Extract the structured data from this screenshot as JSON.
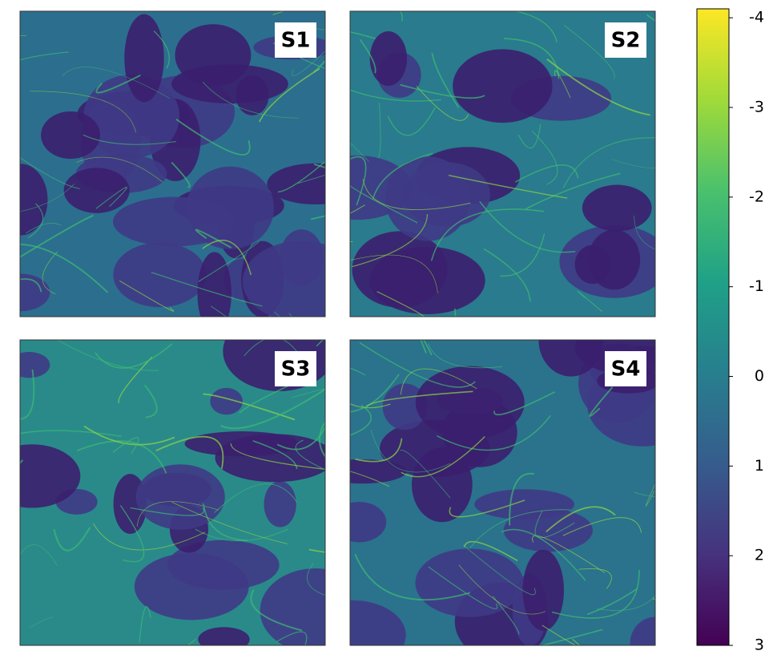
{
  "chart_data": {
    "type": "heatmap",
    "colormap": "viridis",
    "panels": [
      {
        "label": "S1"
      },
      {
        "label": "S2"
      },
      {
        "label": "S3"
      },
      {
        "label": "S4"
      }
    ],
    "ylim": [
      3,
      -4.1
    ],
    "yticks": [
      -4,
      -3,
      -2,
      -1,
      0,
      1,
      2,
      3
    ]
  }
}
